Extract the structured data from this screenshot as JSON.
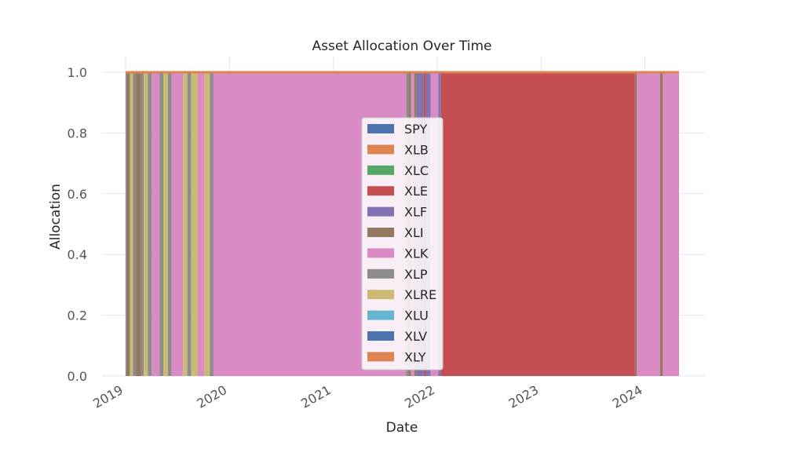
{
  "chart_data": {
    "type": "area",
    "title": "Asset Allocation Over Time",
    "xlabel": "Date",
    "ylabel": "Allocation",
    "ylim": [
      0,
      1
    ],
    "xlim": [
      "2019-01-01",
      "2024-04-30"
    ],
    "yticks": [
      "0.0",
      "0.2",
      "0.4",
      "0.6",
      "0.8",
      "1.0"
    ],
    "xticks": [
      "2019",
      "2020",
      "2021",
      "2022",
      "2023",
      "2024"
    ],
    "grid": true,
    "legend_position": "center",
    "series": [
      {
        "name": "SPY",
        "color": "#4c72b0"
      },
      {
        "name": "XLB",
        "color": "#dd8452"
      },
      {
        "name": "XLC",
        "color": "#55a868"
      },
      {
        "name": "XLE",
        "color": "#c44e52"
      },
      {
        "name": "XLF",
        "color": "#8172b3"
      },
      {
        "name": "XLI",
        "color": "#937860"
      },
      {
        "name": "XLK",
        "color": "#da8bc3"
      },
      {
        "name": "XLP",
        "color": "#8c8c8c"
      },
      {
        "name": "XLRE",
        "color": "#ccb974"
      },
      {
        "name": "XLU",
        "color": "#64b5cd"
      },
      {
        "name": "XLV",
        "color": "#4c72b0"
      },
      {
        "name": "XLY",
        "color": "#dd8452"
      }
    ],
    "periods": [
      {
        "start": "2019-01-01",
        "end": "2019-01-05",
        "asset": "XLP"
      },
      {
        "start": "2019-01-05",
        "end": "2019-01-16",
        "asset": "XLI"
      },
      {
        "start": "2019-01-16",
        "end": "2019-01-27",
        "asset": "XLRE"
      },
      {
        "start": "2019-01-27",
        "end": "2019-02-06",
        "asset": "XLP"
      },
      {
        "start": "2019-02-06",
        "end": "2019-02-24",
        "asset": "XLI"
      },
      {
        "start": "2019-02-24",
        "end": "2019-03-06",
        "asset": "XLP"
      },
      {
        "start": "2019-03-06",
        "end": "2019-03-20",
        "asset": "XLRE"
      },
      {
        "start": "2019-03-20",
        "end": "2019-04-03",
        "asset": "XLP"
      },
      {
        "start": "2019-04-03",
        "end": "2019-05-01",
        "asset": "XLK"
      },
      {
        "start": "2019-05-01",
        "end": "2019-05-14",
        "asset": "XLP"
      },
      {
        "start": "2019-05-14",
        "end": "2019-05-30",
        "asset": "XLRE"
      },
      {
        "start": "2019-05-30",
        "end": "2019-06-12",
        "asset": "XLP"
      },
      {
        "start": "2019-06-12",
        "end": "2019-07-22",
        "asset": "XLK"
      },
      {
        "start": "2019-07-22",
        "end": "2019-08-06",
        "asset": "XLRE"
      },
      {
        "start": "2019-08-06",
        "end": "2019-08-20",
        "asset": "XLP"
      },
      {
        "start": "2019-08-20",
        "end": "2019-09-12",
        "asset": "XLRE"
      },
      {
        "start": "2019-09-12",
        "end": "2019-10-05",
        "asset": "XLK"
      },
      {
        "start": "2019-10-05",
        "end": "2019-10-24",
        "asset": "XLRE"
      },
      {
        "start": "2019-10-24",
        "end": "2019-11-06",
        "asset": "XLP"
      },
      {
        "start": "2019-11-06",
        "end": "2021-09-14",
        "asset": "XLK"
      },
      {
        "start": "2021-09-14",
        "end": "2021-09-22",
        "asset": "XLP"
      },
      {
        "start": "2021-09-22",
        "end": "2021-10-01",
        "asset": "XLI"
      },
      {
        "start": "2021-10-01",
        "end": "2021-10-12",
        "asset": "XLK"
      },
      {
        "start": "2021-10-12",
        "end": "2021-10-20",
        "asset": "XLI"
      },
      {
        "start": "2021-10-20",
        "end": "2021-11-14",
        "asset": "XLF"
      },
      {
        "start": "2021-11-14",
        "end": "2021-11-22",
        "asset": "XLE"
      },
      {
        "start": "2021-11-22",
        "end": "2021-12-09",
        "asset": "XLF"
      },
      {
        "start": "2021-12-09",
        "end": "2022-01-05",
        "asset": "XLK"
      },
      {
        "start": "2022-01-05",
        "end": "2022-01-14",
        "asset": "XLF"
      },
      {
        "start": "2022-01-14",
        "end": "2023-11-27",
        "asset": "XLE"
      },
      {
        "start": "2023-11-27",
        "end": "2023-12-03",
        "asset": "XLI"
      },
      {
        "start": "2023-12-03",
        "end": "2024-02-23",
        "asset": "XLK"
      },
      {
        "start": "2024-02-23",
        "end": "2024-03-04",
        "asset": "XLI"
      },
      {
        "start": "2024-03-04",
        "end": "2024-04-30",
        "asset": "XLK"
      }
    ]
  }
}
